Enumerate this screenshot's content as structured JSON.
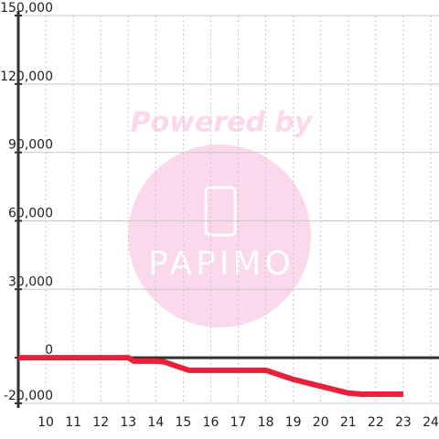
{
  "chart_data": {
    "type": "line",
    "x": [
      9,
      10,
      11,
      12,
      13,
      13.2,
      14,
      14.3,
      14.7,
      15.2,
      16,
      17,
      18,
      19,
      20,
      21,
      21.5,
      22,
      23
    ],
    "series": [
      {
        "color": "#e8203a",
        "values": [
          0,
          0,
          0,
          0,
          0,
          -1500,
          -1500,
          -1800,
          -3500,
          -5500,
          -5500,
          -5500,
          -5500,
          -9500,
          -12500,
          -15500,
          -16000,
          -16000,
          -16000
        ]
      }
    ],
    "xlim": [
      9,
      24.3
    ],
    "xticks": [
      10,
      11,
      12,
      13,
      14,
      15,
      16,
      17,
      18,
      19,
      20,
      21,
      22,
      23,
      24
    ],
    "ylim": [
      -20000,
      150000
    ],
    "yticks": [
      {
        "value": -20000,
        "label": "-20,000"
      },
      0,
      {
        "value": 30000,
        "label": "30,000"
      },
      {
        "value": 60000,
        "label": "60,000"
      },
      {
        "value": 90000,
        "label": "90,000"
      },
      {
        "value": 120000,
        "label": "120,000"
      },
      {
        "value": 150000,
        "label": "150,000"
      }
    ],
    "grid": true,
    "watermark": {
      "text": "Powered by",
      "logo": "PAPIMO"
    }
  }
}
